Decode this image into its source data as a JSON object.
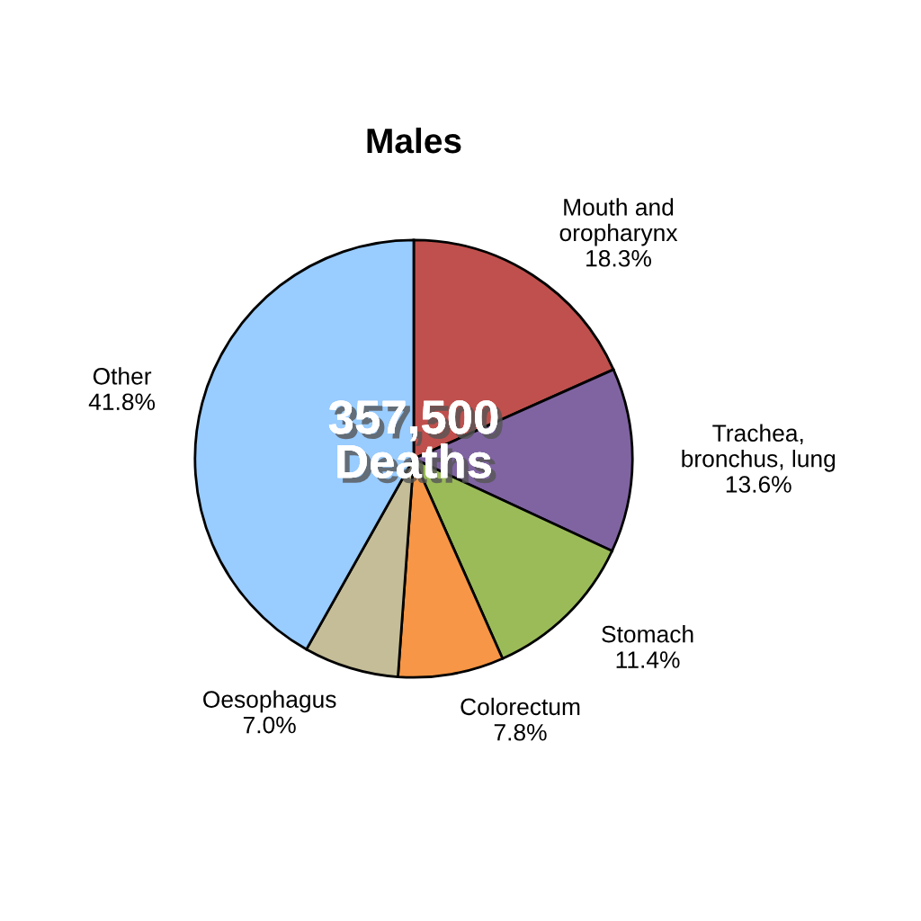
{
  "chart_data": {
    "type": "pie",
    "title": "Males",
    "categories": [
      "Mouth and\noropharynx",
      "Trachea,\nbronchus, lung",
      "Stomach",
      "Colorectum",
      "Oesophagus",
      "Other"
    ],
    "values": [
      18.3,
      13.6,
      11.4,
      7.8,
      7.0,
      41.8
    ],
    "value_labels": [
      "18.3%",
      "13.6%",
      "11.4%",
      "7.8%",
      "7.0%",
      "41.8%"
    ],
    "colors": [
      "#c0504d",
      "#8064a2",
      "#9bbb59",
      "#f79646",
      "#c4bd97",
      "#99ccff"
    ],
    "annotations": [
      "357,500\nDeaths"
    ]
  }
}
